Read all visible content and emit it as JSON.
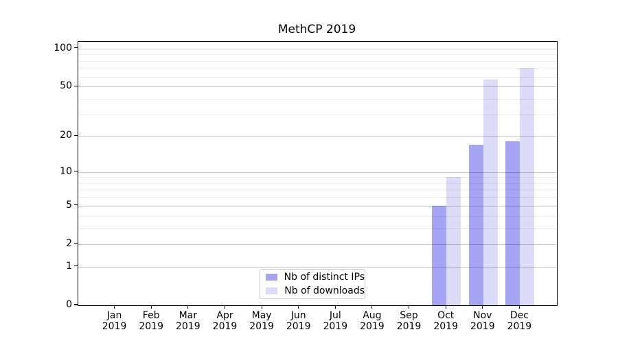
{
  "chart_data": {
    "type": "bar",
    "title": "MethCP 2019",
    "x": {
      "categories": [
        {
          "month": "Jan",
          "year": "2019"
        },
        {
          "month": "Feb",
          "year": "2019"
        },
        {
          "month": "Mar",
          "year": "2019"
        },
        {
          "month": "Apr",
          "year": "2019"
        },
        {
          "month": "May",
          "year": "2019"
        },
        {
          "month": "Jun",
          "year": "2019"
        },
        {
          "month": "Jul",
          "year": "2019"
        },
        {
          "month": "Aug",
          "year": "2019"
        },
        {
          "month": "Sep",
          "year": "2019"
        },
        {
          "month": "Oct",
          "year": "2019"
        },
        {
          "month": "Nov",
          "year": "2019"
        },
        {
          "month": "Dec",
          "year": "2019"
        }
      ]
    },
    "series": [
      {
        "name": "Nb of distinct IPs",
        "color": "#a5a5f4",
        "values": [
          0,
          0,
          0,
          0,
          0,
          0,
          0,
          0,
          0,
          5,
          17,
          18
        ]
      },
      {
        "name": "Nb of downloads",
        "color": "#dcdcf9",
        "values": [
          0,
          0,
          0,
          0,
          0,
          0,
          0,
          0,
          0,
          9,
          57,
          70
        ]
      }
    ],
    "y_axis": {
      "scale": "log1p",
      "major_ticks": [
        0,
        1,
        2,
        5,
        10,
        20,
        50,
        100
      ],
      "minor_ticks": [
        3,
        4,
        6,
        7,
        8,
        9,
        30,
        40,
        60,
        70,
        80,
        90
      ],
      "max": 113
    },
    "legend": {
      "position": "lower center"
    },
    "grid": "horizontal-only",
    "colors": {
      "axis": "#000000",
      "major_grid": "#c7c7c7",
      "minor_grid": "#ebebeb",
      "background": "#ffffff"
    }
  }
}
